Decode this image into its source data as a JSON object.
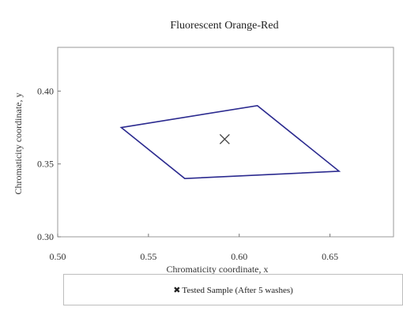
{
  "chart_data": {
    "type": "scatter",
    "title": "Fluorescent Orange-Red",
    "xlabel": "Chromaticity coordinate, x",
    "ylabel": "Chromaticity coordinate, y",
    "xlim": [
      0.5,
      0.685
    ],
    "ylim": [
      0.3,
      0.43
    ],
    "x_ticks": [
      0.5,
      0.55,
      0.6,
      0.65
    ],
    "x_tick_labels": [
      "0.50",
      "0.55",
      "0.60",
      "0.65"
    ],
    "y_ticks": [
      0.3,
      0.35,
      0.4
    ],
    "y_tick_labels": [
      "0.30",
      "0.35",
      "0.40"
    ],
    "grid": false,
    "boundary": {
      "x": [
        0.535,
        0.61,
        0.655,
        0.57
      ],
      "y": [
        0.375,
        0.39,
        0.345,
        0.34
      ],
      "color": "#2b2a8f"
    },
    "series": [
      {
        "name": "Tested Sample (After 5 washes)",
        "marker": "x",
        "x": [
          0.592
        ],
        "y": [
          0.367
        ],
        "color": "#444444"
      }
    ],
    "legend_placement": "bottom"
  }
}
